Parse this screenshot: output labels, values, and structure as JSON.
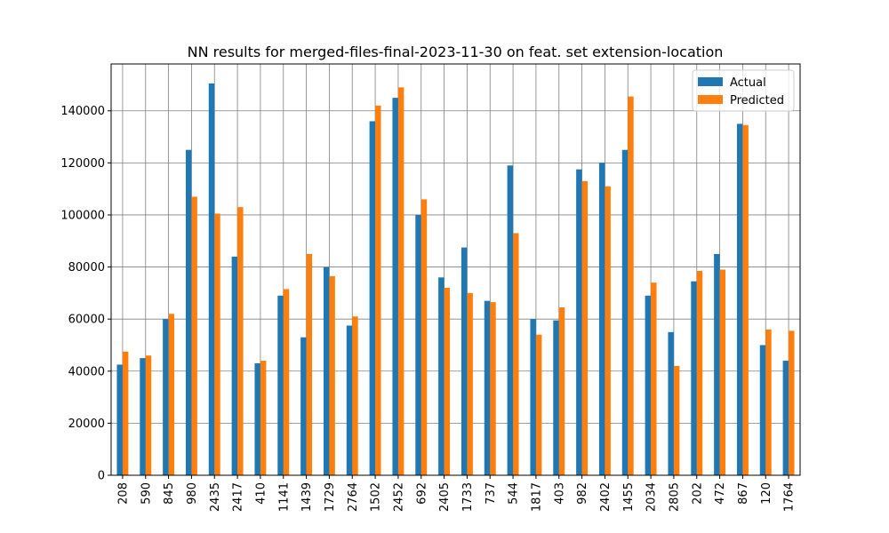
{
  "chart_data": {
    "type": "bar",
    "title": "NN results for merged-files-final-2023-11-30 on feat. set extension-location",
    "xlabel": "",
    "ylabel": "",
    "categories": [
      "208",
      "590",
      "845",
      "980",
      "2435",
      "2417",
      "410",
      "1141",
      "1439",
      "1729",
      "2764",
      "1502",
      "2452",
      "692",
      "2405",
      "1733",
      "737",
      "544",
      "1817",
      "403",
      "982",
      "2402",
      "1455",
      "2034",
      "2805",
      "202",
      "472",
      "867",
      "120",
      "1764"
    ],
    "series": [
      {
        "name": "Actual",
        "color": "#1f77b4",
        "values": [
          42500,
          45000,
          60000,
          125000,
          150500,
          84000,
          43000,
          69000,
          53000,
          80000,
          57500,
          136000,
          145000,
          100000,
          76000,
          87500,
          67000,
          119000,
          60000,
          59500,
          117500,
          120000,
          125000,
          69000,
          55000,
          74500,
          85000,
          135000,
          50000,
          44000
        ]
      },
      {
        "name": "Predicted",
        "color": "#ff7f0e",
        "values": [
          47500,
          46000,
          62000,
          107000,
          100500,
          103000,
          44000,
          71500,
          85000,
          76500,
          61000,
          142000,
          149000,
          106000,
          72000,
          70000,
          66500,
          93000,
          54000,
          64500,
          113000,
          111000,
          145500,
          74000,
          42000,
          78500,
          79000,
          134500,
          56000,
          55500
        ]
      }
    ],
    "ylim": [
      0,
      158000
    ],
    "yticks": [
      0,
      20000,
      40000,
      60000,
      80000,
      100000,
      120000,
      140000
    ],
    "grid": true,
    "legend": "top-right"
  }
}
